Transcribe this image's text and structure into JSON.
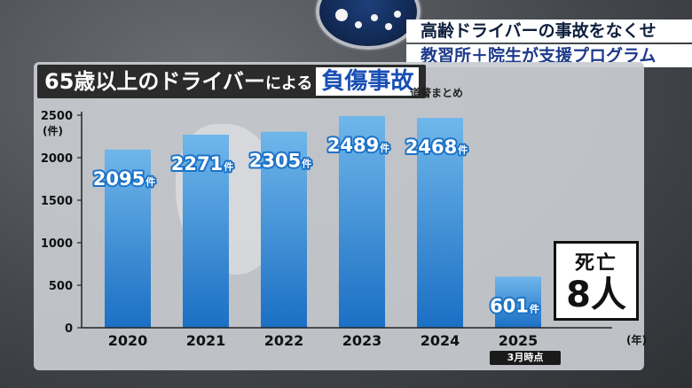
{
  "headline": {
    "line1": "高齢ドライバーの事故をなくせ",
    "line2": "教習所＋院生が支援プログラム"
  },
  "title": {
    "prefix": "65歳以上の",
    "middle": "ドライバー",
    "small": "による",
    "emphasis": "負傷事故"
  },
  "source": "道警まとめ",
  "deaths": {
    "label": "死亡",
    "value": "8人"
  },
  "note": "3月時点",
  "colors": {
    "bar_top": "#6fb6ea",
    "bar_bottom": "#1b6fc4",
    "value_label": "#1b73c8"
  },
  "chart_data": {
    "type": "bar",
    "categories": [
      "2020",
      "2021",
      "2022",
      "2023",
      "2024",
      "2025"
    ],
    "values": [
      2095,
      2271,
      2305,
      2489,
      2468,
      601
    ],
    "value_labels": [
      "2095",
      "2271",
      "2305",
      "2489",
      "2468",
      "601"
    ],
    "value_unit": "件",
    "yticks": [
      0,
      500,
      1000,
      1500,
      2000,
      2500
    ],
    "ylim": [
      0,
      2500
    ],
    "yunit": "(件)",
    "xunit": "(年)",
    "grid": false
  }
}
